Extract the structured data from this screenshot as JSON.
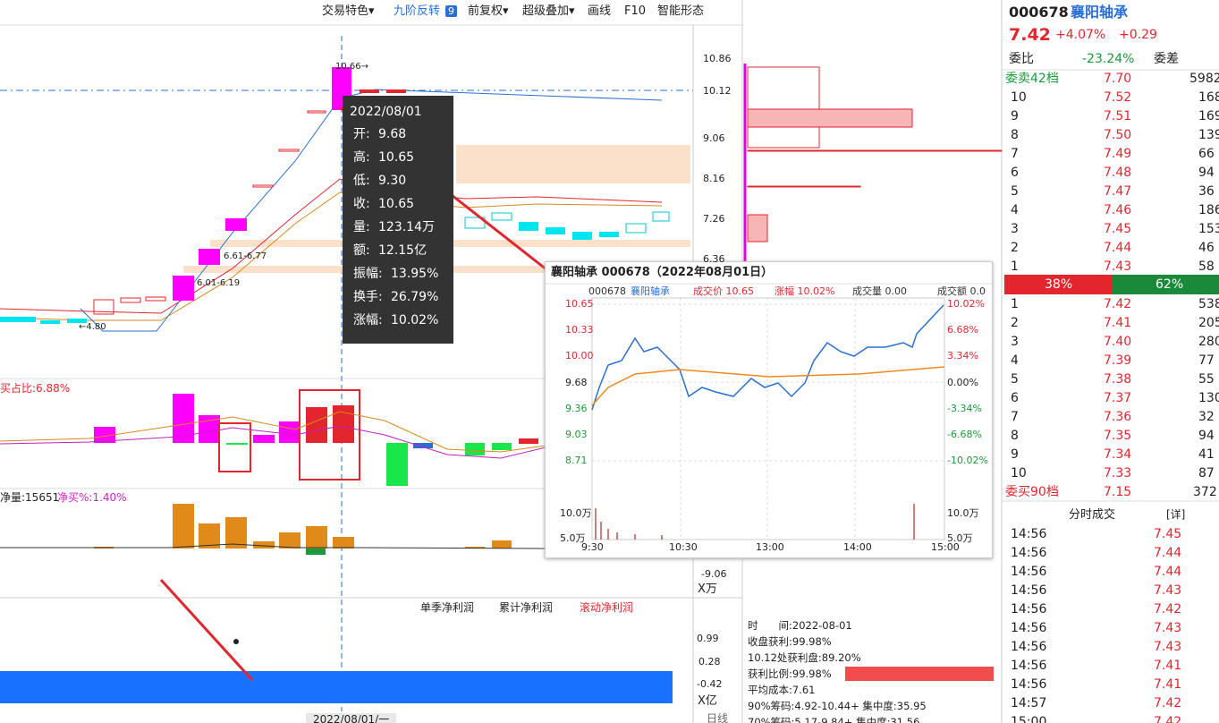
{
  "toolbar": [
    "交易特色▾",
    "九阶反转",
    "9",
    "前复权▾",
    "超级叠加▾",
    "画线",
    "F10",
    "智能形态"
  ],
  "price_axis": [
    "10.86",
    "10.12",
    "9.06",
    "8.16",
    "7.26",
    "6.36"
  ],
  "annotations": [
    "10.66→",
    "6.61-6.77",
    "6.01-6.19",
    "←4.80"
  ],
  "tooltip": {
    "date": "2022/08/01",
    "rows": [
      [
        "开",
        "9.68"
      ],
      [
        "高",
        "10.65"
      ],
      [
        "低",
        "9.30"
      ],
      [
        "收",
        "10.65"
      ],
      [
        "量",
        "123.14万"
      ],
      [
        "额",
        "12.15亿"
      ],
      [
        "振幅",
        "13.95%"
      ],
      [
        "换手",
        "26.79%"
      ],
      [
        "涨幅",
        "10.02%"
      ]
    ]
  },
  "indicator1": "买占比:6.88%",
  "indicator2": [
    "净量:15651",
    "净买%:1.40%"
  ],
  "indicator2_axis": [
    "-9.06",
    "X万"
  ],
  "profit_panel": {
    "tabs": [
      "单季净利润",
      "累计净利润",
      "滚动净利润"
    ],
    "axis": [
      "0.99",
      "0.28",
      "-0.42",
      "X亿"
    ]
  },
  "date_bar": [
    "2022/08/01/一",
    "日线"
  ],
  "popup": {
    "title": "襄阳轴承 000678（2022年08月01日）",
    "header": [
      "000678",
      "襄阳轴承",
      "成交价 10.65",
      "涨幅 10.02%",
      "成交量 0.00",
      "成交额 0.0"
    ],
    "price_ticks": [
      "10.65",
      "10.33",
      "10.00",
      "9.68",
      "9.36",
      "9.03",
      "8.71"
    ],
    "pct_ticks": [
      "10.02%",
      "6.68%",
      "3.34%",
      "0.00%",
      "-3.34%",
      "-6.68%",
      "-10.02%"
    ],
    "vol_ticks": [
      "10.0万",
      "5.0万"
    ],
    "vol_ticks_right": [
      "10.0万",
      "5.0万"
    ],
    "time_ticks": [
      "9:30",
      "10:30",
      "13:00",
      "14:00",
      "15:00"
    ]
  },
  "chips": [
    "时　　间:2022-08-01",
    "收盘获利:99.98%",
    "10.12处获利盘:89.20%",
    "获利比例:99.98%",
    "平均成本:7.61",
    "90%筹码:4.92-10.44+ 集中度:35.95",
    "70%筹码:5.17-9.84+ 集中度:31.56"
  ],
  "quote": {
    "code": "000678",
    "name": "襄阳轴承",
    "price": "7.42",
    "pct": "+4.07%",
    "change": "+0.29",
    "ratio_label": "委比",
    "ratio": "-23.24%",
    "diff_label": "委差",
    "sell_total_label": "委卖42档",
    "sell_total_price": "7.70",
    "sell_total_vol": "5982",
    "sell": [
      [
        "10",
        "7.52",
        "168"
      ],
      [
        "9",
        "7.51",
        "169"
      ],
      [
        "8",
        "7.50",
        "139"
      ],
      [
        "7",
        "7.49",
        "66"
      ],
      [
        "6",
        "7.48",
        "94"
      ],
      [
        "5",
        "7.47",
        "36"
      ],
      [
        "4",
        "7.46",
        "186"
      ],
      [
        "3",
        "7.45",
        "153"
      ],
      [
        "2",
        "7.44",
        "46"
      ],
      [
        "1",
        "7.43",
        "58"
      ]
    ],
    "bar_left": "38%",
    "bar_right": "62%",
    "buy": [
      [
        "1",
        "7.42",
        "538"
      ],
      [
        "2",
        "7.41",
        "205"
      ],
      [
        "3",
        "7.40",
        "280"
      ],
      [
        "4",
        "7.39",
        "77"
      ],
      [
        "5",
        "7.38",
        "55"
      ],
      [
        "6",
        "7.37",
        "130"
      ],
      [
        "7",
        "7.36",
        "32"
      ],
      [
        "8",
        "7.35",
        "94"
      ],
      [
        "9",
        "7.34",
        "41"
      ],
      [
        "10",
        "7.33",
        "87"
      ]
    ],
    "buy_total_label": "委买90档",
    "buy_total_price": "7.15",
    "buy_total_vol": "372",
    "trades_title": "分时成交",
    "trades_detail": "[详]",
    "trades": [
      [
        "14:56",
        "7.45"
      ],
      [
        "14:56",
        "7.44"
      ],
      [
        "14:56",
        "7.44"
      ],
      [
        "14:56",
        "7.43"
      ],
      [
        "14:56",
        "7.42"
      ],
      [
        "14:56",
        "7.43"
      ],
      [
        "14:56",
        "7.43"
      ],
      [
        "14:56",
        "7.41"
      ],
      [
        "14:56",
        "7.41"
      ],
      [
        "14:57",
        "7.42"
      ],
      [
        "15:00",
        "7.42"
      ]
    ]
  }
}
